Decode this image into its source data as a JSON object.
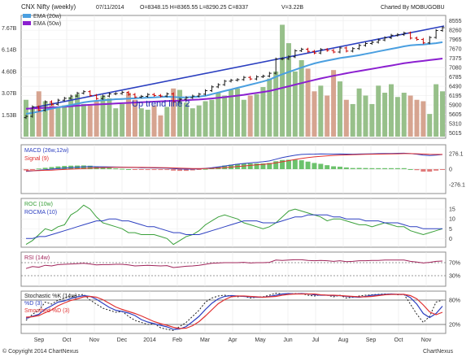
{
  "header": {
    "title": "CNX Nifty (weekly)",
    "date": "07/11/2014",
    "ohlc": "O=8348.15  H=8365.55  L=8290.25  C=8337",
    "volume": "V=3.22B",
    "credit": "Charted By MOBUGOBU"
  },
  "footer": {
    "copyright": "© Copyright 2014 ChartNexus",
    "brand": "ChartNexus"
  },
  "colors": {
    "up": "#1a1a1a",
    "down": "#cc0000",
    "ema20": "#4a9fe0",
    "ema50": "#8b1fd0",
    "trend": "#2b3fc0",
    "vol_up": "#97c08a",
    "vol_down": "#d6a490",
    "macd": "#2c3fc0",
    "signal": "#e03030",
    "hist_up": "#6cc26c",
    "hist_down": "#e07a7a",
    "roc": "#3aa03a",
    "rocma": "#2c3fc0",
    "rsi": "#a0245a",
    "k": "#222222",
    "d": "#2c3fc0",
    "sd": "#e03030"
  },
  "chart_data": [
    {
      "type": "candlestick",
      "title": "CNX Nifty (weekly)",
      "x_ticks": [
        "Sep",
        "Oct",
        "Nov",
        "Dec",
        "2014",
        "Feb",
        "Mar",
        "Apr",
        "May",
        "Jun",
        "Jul",
        "Aug",
        "Sep",
        "Oct",
        "Nov"
      ],
      "y_ticks": [
        8555,
        8260,
        7965,
        7670,
        7375,
        7080,
        6785,
        6490,
        6195,
        5900,
        5605
      ],
      "y_ticks_low": [
        5310,
        5015
      ],
      "ylim": [
        4900,
        8700
      ],
      "close": [
        5540,
        5840,
        5730,
        6000,
        5920,
        6050,
        6110,
        6180,
        6270,
        6320,
        6200,
        6100,
        6180,
        6250,
        6260,
        6300,
        6230,
        6150,
        6170,
        6230,
        6200,
        6180,
        6250,
        6000,
        6080,
        6130,
        6180,
        6240,
        6350,
        6470,
        6540,
        6650,
        6680,
        6700,
        6770,
        6720,
        6790,
        6810,
        6900,
        7350,
        7360,
        7420,
        7610,
        7660,
        7590,
        7540,
        7650,
        7620,
        7570,
        7700,
        7600,
        7680,
        7780,
        7840,
        7880,
        7950,
        8020,
        8100,
        8120,
        8170,
        8010,
        7970,
        7860,
        8030,
        8250,
        8340
      ],
      "ema20": [
        5620,
        5650,
        5690,
        5740,
        5780,
        5820,
        5860,
        5900,
        5940,
        5980,
        6010,
        6030,
        6050,
        6060,
        6080,
        6090,
        6100,
        6110,
        6120,
        6130,
        6140,
        6150,
        6160,
        6150,
        6140,
        6140,
        6150,
        6160,
        6190,
        6240,
        6290,
        6340,
        6390,
        6440,
        6490,
        6540,
        6590,
        6640,
        6700,
        6790,
        6870,
        6940,
        7010,
        7080,
        7150,
        7210,
        7260,
        7300,
        7340,
        7380,
        7410,
        7440,
        7470,
        7510,
        7550,
        7590,
        7630,
        7670,
        7710,
        7750,
        7780,
        7800,
        7810,
        7830,
        7850,
        7880
      ],
      "ema50": [
        5780,
        5790,
        5800,
        5810,
        5820,
        5830,
        5845,
        5860,
        5875,
        5890,
        5905,
        5915,
        5925,
        5935,
        5945,
        5955,
        5965,
        5975,
        5985,
        5995,
        6005,
        6015,
        6025,
        6030,
        6040,
        6050,
        6060,
        6070,
        6085,
        6105,
        6125,
        6145,
        6170,
        6195,
        6220,
        6250,
        6280,
        6310,
        6340,
        6390,
        6440,
        6490,
        6540,
        6590,
        6640,
        6690,
        6735,
        6780,
        6820,
        6860,
        6900,
        6935,
        6970,
        7005,
        7040,
        7075,
        7110,
        7145,
        7180,
        7215,
        7245,
        7270,
        7290,
        7315,
        7340,
        7365
      ],
      "annotation": "Up trend line 2"
    },
    {
      "type": "bar",
      "title": "Volume",
      "y_ticks": [
        "7.67B",
        "6.14B",
        "4.60B",
        "3.07B",
        "1.53B"
      ],
      "ylim": [
        0,
        8.5
      ],
      "values": [
        2.6,
        2.0,
        3.2,
        2.5,
        2.4,
        2.1,
        2.2,
        2.8,
        3.0,
        2.3,
        2.2,
        2.5,
        2.9,
        2.7,
        2.0,
        2.3,
        3.1,
        2.6,
        2.0,
        1.9,
        2.2,
        1.5,
        2.1,
        3.4,
        3.3,
        2.4,
        2.0,
        2.2,
        2.5,
        2.6,
        3.1,
        2.9,
        3.3,
        3.4,
        2.6,
        2.9,
        3.0,
        3.5,
        4.1,
        4.6,
        7.9,
        6.6,
        4.6,
        5.4,
        4.8,
        3.2,
        3.6,
        2.9,
        4.7,
        3.9,
        2.6,
        2.3,
        3.4,
        2.9,
        2.3,
        3.6,
        3.1,
        3.7,
        2.8,
        3.1,
        2.9,
        2.6,
        2.5,
        1.6,
        3.7,
        3.2
      ]
    },
    {
      "type": "line",
      "title": "MACD (26w,12w)",
      "series": [
        {
          "name": "MACD (26w,12w)"
        },
        {
          "name": "Signal (9)"
        }
      ],
      "y_ticks": [
        "276.1",
        "0",
        "-276.1"
      ],
      "ylim": [
        -420,
        420
      ],
      "macd": [
        -40,
        -30,
        -20,
        -10,
        0,
        10,
        20,
        28,
        35,
        42,
        46,
        44,
        42,
        40,
        38,
        36,
        34,
        30,
        26,
        24,
        22,
        20,
        18,
        10,
        4,
        0,
        2,
        6,
        14,
        26,
        40,
        56,
        72,
        88,
        102,
        112,
        122,
        132,
        146,
        176,
        206,
        228,
        248,
        262,
        266,
        268,
        272,
        270,
        268,
        270,
        268,
        266,
        270,
        272,
        274,
        276,
        278,
        280,
        282,
        284,
        276,
        266,
        250,
        244,
        250,
        260
      ],
      "signal": [
        -30,
        -28,
        -25,
        -21,
        -17,
        -12,
        -6,
        0,
        6,
        12,
        18,
        23,
        27,
        30,
        32,
        33,
        34,
        33,
        32,
        31,
        29,
        27,
        25,
        22,
        18,
        14,
        12,
        11,
        12,
        15,
        20,
        27,
        36,
        46,
        56,
        66,
        76,
        86,
        96,
        112,
        132,
        152,
        172,
        190,
        205,
        218,
        229,
        238,
        245,
        250,
        254,
        257,
        260,
        263,
        266,
        268,
        270,
        272,
        274,
        276,
        276,
        274,
        270,
        264,
        262,
        262
      ]
    },
    {
      "type": "line",
      "title": "ROC (10w)",
      "series": [
        {
          "name": "ROC (10w)"
        },
        {
          "name": "ROCMA (10)"
        }
      ],
      "y_ticks": [
        "15",
        "10",
        "5",
        "0"
      ],
      "ylim": [
        -4,
        20
      ],
      "roc": [
        -3,
        -1,
        2,
        5,
        4,
        6,
        7,
        12,
        14,
        17,
        15,
        11,
        8,
        7,
        6,
        5,
        3,
        3,
        2,
        2,
        2,
        1,
        0,
        -3,
        -1,
        1,
        2,
        4,
        7,
        9,
        11,
        12,
        11,
        10,
        8,
        7,
        6,
        5,
        6,
        8,
        11,
        14,
        15,
        14,
        13,
        12,
        11,
        9,
        10,
        10,
        9,
        8,
        7,
        7,
        6,
        7,
        8,
        7,
        6,
        6,
        4,
        3,
        2,
        3,
        4,
        5
      ],
      "rocma": [
        0,
        0,
        1,
        1,
        2,
        3,
        4,
        5,
        6,
        7,
        8,
        9,
        9,
        10,
        10,
        9,
        9,
        8,
        7,
        6,
        6,
        5,
        4,
        3,
        3,
        2,
        2,
        2,
        3,
        4,
        5,
        6,
        7,
        8,
        9,
        9,
        9,
        8,
        8,
        8,
        9,
        10,
        11,
        11,
        12,
        12,
        12,
        12,
        11,
        11,
        10,
        10,
        10,
        9,
        9,
        9,
        8,
        8,
        8,
        7,
        6,
        6,
        5,
        5,
        5,
        5
      ]
    },
    {
      "type": "line",
      "title": "RSI (14w)",
      "y_ticks": [
        "70%",
        "30%"
      ],
      "ylim": [
        0,
        100
      ],
      "values": [
        52,
        58,
        56,
        62,
        60,
        64,
        65,
        66,
        67,
        68,
        66,
        63,
        64,
        64,
        65,
        65,
        63,
        60,
        61,
        62,
        61,
        60,
        61,
        55,
        57,
        59,
        60,
        62,
        65,
        68,
        69,
        70,
        70,
        70,
        71,
        69,
        70,
        70,
        71,
        78,
        77,
        78,
        79,
        79,
        77,
        76,
        77,
        76,
        74,
        76,
        73,
        74,
        76,
        76,
        77,
        77,
        78,
        78,
        78,
        78,
        74,
        72,
        69,
        71,
        74,
        75
      ]
    },
    {
      "type": "line",
      "title": "Stochastic %K (14w)",
      "series": [
        {
          "name": "Stochastic %K (14w)"
        },
        {
          "name": "%D (3)"
        },
        {
          "name": "Smoothed %D (3)"
        }
      ],
      "y_ticks": [
        "80%",
        "20%"
      ],
      "ylim": [
        0,
        100
      ],
      "k": [
        30,
        45,
        55,
        75,
        70,
        80,
        85,
        88,
        92,
        94,
        80,
        70,
        60,
        55,
        50,
        52,
        40,
        30,
        25,
        20,
        22,
        12,
        8,
        5,
        15,
        25,
        40,
        55,
        75,
        85,
        90,
        92,
        90,
        88,
        90,
        85,
        87,
        88,
        92,
        97,
        95,
        95,
        96,
        96,
        92,
        90,
        93,
        92,
        88,
        92,
        85,
        87,
        90,
        92,
        93,
        94,
        95,
        95,
        93,
        94,
        70,
        45,
        25,
        40,
        75,
        80
      ],
      "d": [
        35,
        40,
        45,
        58,
        66,
        75,
        78,
        84,
        88,
        91,
        89,
        82,
        72,
        62,
        55,
        52,
        48,
        42,
        32,
        26,
        22,
        18,
        14,
        8,
        9,
        15,
        27,
        40,
        57,
        72,
        83,
        89,
        91,
        90,
        89,
        88,
        87,
        87,
        89,
        92,
        95,
        96,
        95,
        96,
        95,
        93,
        92,
        92,
        91,
        91,
        89,
        88,
        87,
        89,
        92,
        93,
        94,
        95,
        94,
        94,
        86,
        70,
        47,
        37,
        47,
        65
      ],
      "sd": [
        38,
        39,
        42,
        49,
        56,
        66,
        73,
        79,
        83,
        88,
        89,
        87,
        81,
        72,
        63,
        57,
        52,
        47,
        41,
        34,
        27,
        22,
        18,
        13,
        10,
        11,
        17,
        27,
        41,
        56,
        71,
        81,
        88,
        90,
        90,
        89,
        88,
        87,
        88,
        89,
        92,
        94,
        95,
        95,
        95,
        95,
        93,
        92,
        92,
        91,
        90,
        89,
        88,
        88,
        89,
        91,
        93,
        94,
        94,
        94,
        91,
        83,
        68,
        51,
        44,
        50
      ]
    }
  ]
}
